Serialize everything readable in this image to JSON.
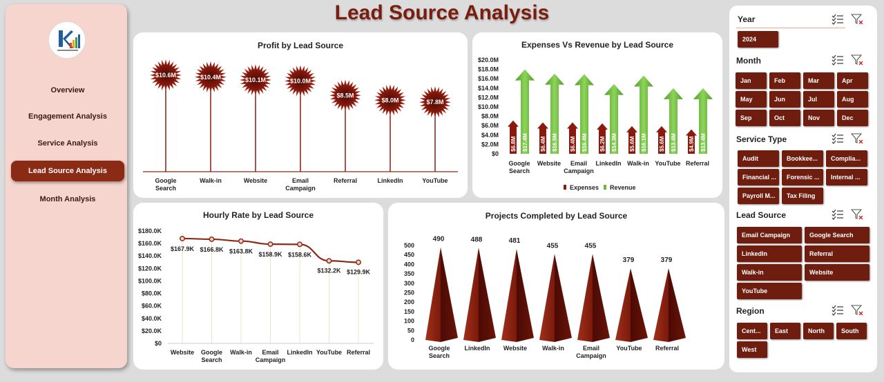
{
  "page": {
    "title": "Lead Source Analysis"
  },
  "sidebar": {
    "items": [
      {
        "label": "Overview",
        "active": false
      },
      {
        "label": "Engagement  Analysis",
        "active": false
      },
      {
        "label": "Service Analysis",
        "active": false
      },
      {
        "label": "Lead Source Analysis",
        "active": true
      },
      {
        "label": "Month Analysis",
        "active": false
      }
    ]
  },
  "colors": {
    "accent": "#7a1c0e",
    "revenue": "#6fb63c",
    "expenses": "#8b1a0e"
  },
  "filters": {
    "year": {
      "title": "Year",
      "options": [
        "2024"
      ]
    },
    "month": {
      "title": "Month",
      "options": [
        "Jan",
        "Feb",
        "Mar",
        "Apr",
        "May",
        "Jun",
        "Jul",
        "Aug",
        "Sep",
        "Oct",
        "Nov",
        "Dec"
      ]
    },
    "service": {
      "title": "Service Type",
      "options": [
        "Audit",
        "Bookkee...",
        "Complia...",
        "Financial ...",
        "Forensic ...",
        "Internal ...",
        "Payroll M...",
        "Tax Filing"
      ]
    },
    "lead": {
      "title": "Lead Source",
      "options": [
        "Email Campaign",
        "Google Search",
        "LinkedIn",
        "Referral",
        "Walk-in",
        "Website",
        "YouTube"
      ]
    },
    "region": {
      "title": "Region",
      "options": [
        "Cent...",
        "East",
        "North",
        "South",
        "West"
      ]
    }
  },
  "chart_data": [
    {
      "id": "profit",
      "type": "bar",
      "title": "Profit by Lead Source",
      "categories": [
        "Google Search",
        "Walk-in",
        "Website",
        "Email Campaign",
        "Referral",
        "LinkedIn",
        "YouTube"
      ],
      "values": [
        10.6,
        10.4,
        10.1,
        10.0,
        8.5,
        8.0,
        7.8
      ],
      "labels": [
        "$10.6M",
        "$10.4M",
        "$10.1M",
        "$10.0M",
        "$8.5M",
        "$8.0M",
        "$7.8M"
      ],
      "unit": "$M"
    },
    {
      "id": "expenses_revenue",
      "type": "bar",
      "title": "Expenses Vs Revenue by Lead Source",
      "categories": [
        "Google Search",
        "Website",
        "Email Campaign",
        "LinkedIn",
        "Walk-in",
        "YouTube",
        "Referral"
      ],
      "series": [
        {
          "name": "Expenses",
          "values": [
            6.8,
            6.4,
            6.4,
            6.2,
            5.6,
            5.6,
            4.9
          ],
          "labels": [
            "$6.8M",
            "$6.4M",
            "$6.4M",
            "$6.2M",
            "$5.6M",
            "$5.6M",
            "$4.9M"
          ]
        },
        {
          "name": "Revenue",
          "values": [
            17.4,
            16.5,
            16.4,
            14.3,
            16.1,
            13.4,
            13.4
          ],
          "labels": [
            "$17.4M",
            "$16.5M",
            "$16.4M",
            "$14.3M",
            "$16.1M",
            "$13.4M",
            "$13.4M"
          ]
        }
      ],
      "yticks": [
        "$0",
        "$2.0M",
        "$4.0M",
        "$6.0M",
        "$8.0M",
        "$10.0M",
        "$12.0M",
        "$14.0M",
        "$16.0M",
        "$18.0M",
        "$20.0M"
      ],
      "ylim": [
        0,
        20
      ],
      "legend": [
        "Expenses",
        "Revenue"
      ]
    },
    {
      "id": "hourly",
      "type": "line",
      "title": "Hourly Rate by Lead Source",
      "categories": [
        "Website",
        "Google Search",
        "Walk-in",
        "Email Campaign",
        "LinkedIn",
        "YouTube",
        "Referral"
      ],
      "values": [
        167.9,
        166.8,
        163.8,
        158.9,
        158.6,
        132.2,
        129.9
      ],
      "labels": [
        "$167.9K",
        "$166.8K",
        "$163.8K",
        "$158.9K",
        "$158.6K",
        "$132.2K",
        "$129.9K"
      ],
      "yticks": [
        "$0",
        "$20.0K",
        "$40.0K",
        "$60.0K",
        "$80.0K",
        "$100.0K",
        "$120.0K",
        "$140.0K",
        "$160.0K",
        "$180.0K"
      ],
      "ylim": [
        0,
        180
      ]
    },
    {
      "id": "projects",
      "type": "bar",
      "title": "Projects Completed by Lead Source",
      "categories": [
        "Google Search",
        "LinkedIn",
        "Website",
        "Walk-in",
        "Email Campaign",
        "YouTube",
        "Referral"
      ],
      "values": [
        490,
        488,
        481,
        455,
        455,
        379,
        379
      ],
      "labels": [
        "490",
        "488",
        "481",
        "455",
        "455",
        "379",
        "379"
      ],
      "yticks": [
        "0",
        "50",
        "100",
        "150",
        "200",
        "250",
        "300",
        "350",
        "400",
        "450",
        "500"
      ],
      "ylim": [
        0,
        500
      ]
    }
  ]
}
